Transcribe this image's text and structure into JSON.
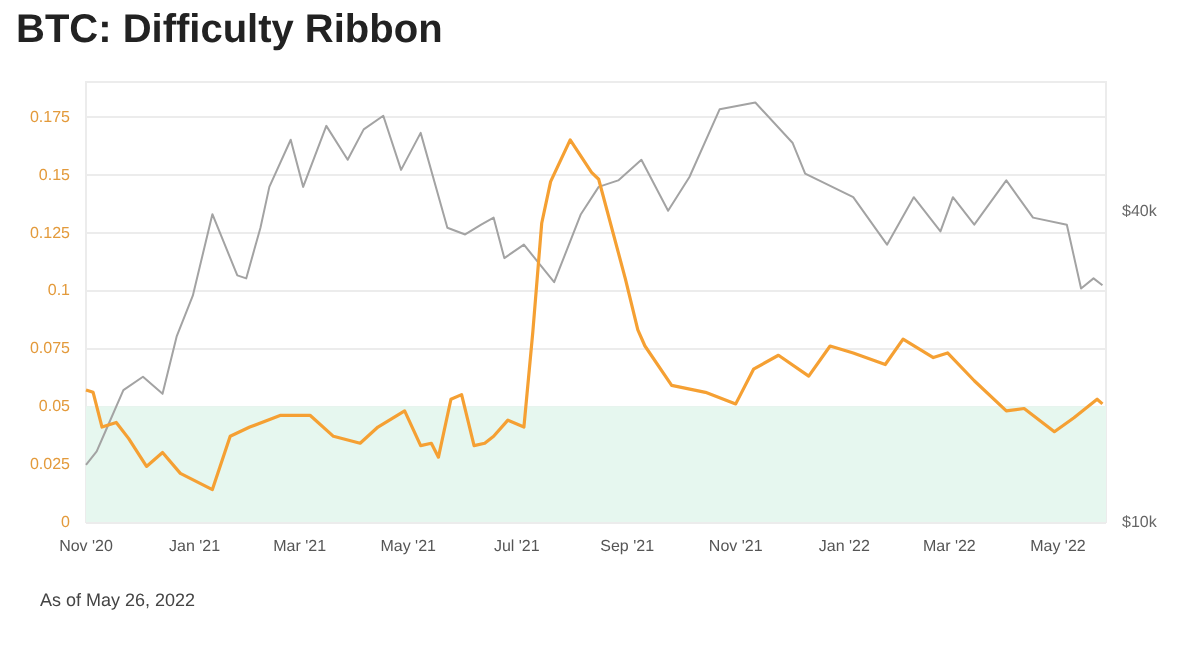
{
  "chart_data": {
    "type": "line",
    "title": "BTC: Difficulty Ribbon",
    "annotations": [
      "As of May 26, 2022"
    ],
    "log": "y2",
    "grid": "y",
    "marker": "none",
    "line_style": "solid",
    "xlim": [
      "2020-11-01",
      "2022-05-28"
    ],
    "xticks": [
      {
        "value": "2020-11-01",
        "label": "Nov '20"
      },
      {
        "value": "2021-01-01",
        "label": "Jan '21"
      },
      {
        "value": "2021-03-01",
        "label": "Mar '21"
      },
      {
        "value": "2021-05-01",
        "label": "May '21"
      },
      {
        "value": "2021-07-01",
        "label": "Jul '21"
      },
      {
        "value": "2021-09-01",
        "label": "Sep '21"
      },
      {
        "value": "2021-11-01",
        "label": "Nov '21"
      },
      {
        "value": "2022-01-01",
        "label": "Jan '22"
      },
      {
        "value": "2022-03-01",
        "label": "Mar '22"
      },
      {
        "value": "2022-05-01",
        "label": "May '22"
      }
    ],
    "ylim": [
      0,
      0.19
    ],
    "yticks": [
      0,
      0.025,
      0.05,
      0.075,
      0.1,
      0.125,
      0.15,
      0.175
    ],
    "y2lim": [
      10000,
      71000
    ],
    "y2ticks": [
      {
        "value": 10000,
        "label": "$10k"
      },
      {
        "value": 40000,
        "label": "$40k"
      }
    ],
    "bands": [
      {
        "axis": "y",
        "from": 0,
        "to": 0.05,
        "color": "#e6f7ef"
      }
    ],
    "series": [
      {
        "color": "#a3a3a3",
        "axis": "y2",
        "x": [
          "2020-11-01",
          "2020-11-07",
          "2020-11-12",
          "2020-11-22",
          "2020-12-03",
          "2020-12-14",
          "2020-12-22",
          "2020-12-31",
          "2021-01-11",
          "2021-01-25",
          "2021-01-30",
          "2021-02-07",
          "2021-02-12",
          "2021-02-24",
          "2021-03-03",
          "2021-03-16",
          "2021-03-28",
          "2021-04-06",
          "2021-04-17",
          "2021-04-27",
          "2021-05-08",
          "2021-05-23",
          "2021-06-02",
          "2021-06-11",
          "2021-06-18",
          "2021-06-24",
          "2021-07-05",
          "2021-07-22",
          "2021-08-06",
          "2021-08-16",
          "2021-08-27",
          "2021-09-09",
          "2021-09-24",
          "2021-10-06",
          "2021-10-23",
          "2021-11-12",
          "2021-12-03",
          "2021-12-10",
          "2022-01-06",
          "2022-01-25",
          "2022-02-09",
          "2022-02-24",
          "2022-03-03",
          "2022-03-15",
          "2022-04-02",
          "2022-04-17",
          "2022-05-06",
          "2022-05-14",
          "2022-05-21",
          "2022-05-26"
        ],
        "values": [
          12900,
          13700,
          15000,
          18000,
          19100,
          17700,
          22900,
          27400,
          39400,
          30000,
          29600,
          37100,
          44500,
          54900,
          44500,
          58400,
          50200,
          57500,
          61100,
          48000,
          56600,
          37100,
          36000,
          37600,
          38800,
          32400,
          34400,
          29100,
          39400,
          44500,
          45800,
          50200,
          40000,
          46500,
          62900,
          64800,
          54100,
          47200,
          42500,
          34400,
          42500,
          36500,
          42500,
          37600,
          45800,
          38800,
          37600,
          28300,
          29600,
          28700
        ]
      },
      {
        "color": "#f5a033",
        "axis": "y",
        "x": [
          "2020-11-01",
          "2020-11-05",
          "2020-11-10",
          "2020-11-18",
          "2020-11-25",
          "2020-12-05",
          "2020-12-14",
          "2020-12-24",
          "2021-01-11",
          "2021-01-21",
          "2021-02-01",
          "2021-02-18",
          "2021-03-07",
          "2021-03-20",
          "2021-04-04",
          "2021-04-14",
          "2021-04-29",
          "2021-05-08",
          "2021-05-14",
          "2021-05-18",
          "2021-05-25",
          "2021-05-31",
          "2021-06-07",
          "2021-06-13",
          "2021-06-18",
          "2021-06-26",
          "2021-07-05",
          "2021-07-10",
          "2021-07-15",
          "2021-07-20",
          "2021-07-31",
          "2021-08-12",
          "2021-08-16",
          "2021-08-31",
          "2021-09-07",
          "2021-09-11",
          "2021-09-26",
          "2021-10-15",
          "2021-11-01",
          "2021-11-11",
          "2021-11-25",
          "2021-12-12",
          "2021-12-24",
          "2022-01-06",
          "2022-01-24",
          "2022-02-03",
          "2022-02-20",
          "2022-02-28",
          "2022-03-15",
          "2022-04-02",
          "2022-04-12",
          "2022-04-29",
          "2022-05-10",
          "2022-05-23",
          "2022-05-26"
        ],
        "values": [
          0.057,
          0.056,
          0.041,
          0.043,
          0.036,
          0.024,
          0.03,
          0.021,
          0.014,
          0.037,
          0.041,
          0.046,
          0.046,
          0.037,
          0.034,
          0.041,
          0.048,
          0.033,
          0.034,
          0.028,
          0.053,
          0.055,
          0.033,
          0.034,
          0.037,
          0.044,
          0.041,
          0.082,
          0.129,
          0.147,
          0.165,
          0.151,
          0.148,
          0.105,
          0.083,
          0.076,
          0.059,
          0.056,
          0.051,
          0.066,
          0.072,
          0.063,
          0.076,
          0.073,
          0.068,
          0.079,
          0.071,
          0.073,
          0.061,
          0.048,
          0.049,
          0.039,
          0.045,
          0.053,
          0.051
        ]
      }
    ]
  }
}
